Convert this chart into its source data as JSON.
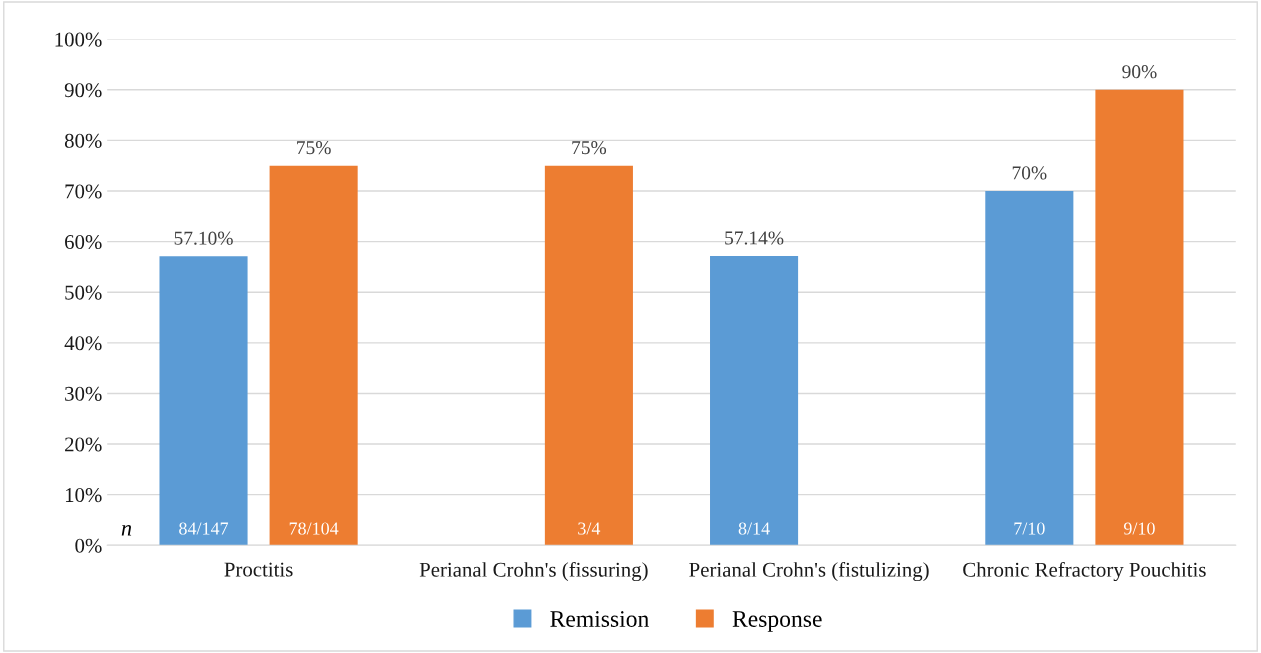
{
  "chart_data": {
    "type": "bar",
    "categories": [
      "Proctitis",
      "Perianal Crohn's (fissuring)",
      "Perianal Crohn's (fistulizing)",
      "Chronic Refractory Pouchitis"
    ],
    "series": [
      {
        "name": "Remission",
        "color": "#5b9bd5",
        "values": [
          57.1,
          null,
          57.14,
          70
        ],
        "value_labels": [
          "57.10%",
          null,
          "57.14%",
          "70%"
        ]
      },
      {
        "name": "Response",
        "color": "#ed7d31",
        "values": [
          75,
          75,
          null,
          90
        ],
        "value_labels": [
          "75%",
          "75%",
          null,
          "90%"
        ]
      }
    ],
    "ylim": [
      0,
      100
    ],
    "yticks": [
      {
        "value": 0,
        "label": "0%"
      },
      {
        "value": 10,
        "label": "10%"
      },
      {
        "value": 20,
        "label": "20%"
      },
      {
        "value": 30,
        "label": "30%"
      },
      {
        "value": 40,
        "label": "40%"
      },
      {
        "value": 50,
        "label": "50%"
      },
      {
        "value": 60,
        "label": "60%"
      },
      {
        "value": 70,
        "label": "70%"
      },
      {
        "value": 80,
        "label": "80%"
      },
      {
        "value": 90,
        "label": "90%"
      },
      {
        "value": 100,
        "label": "100%"
      }
    ],
    "grid": "y",
    "legend": "bottom",
    "annotations": [
      "n",
      "84/147",
      "78/104",
      "3/4",
      "8/14",
      "7/10",
      "9/10"
    ]
  }
}
